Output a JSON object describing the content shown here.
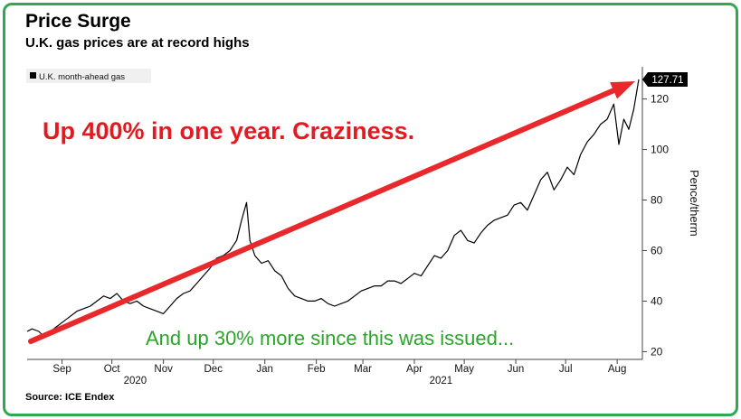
{
  "header": {
    "title": "Price Surge",
    "subtitle": "U.K. gas prices are at record highs"
  },
  "footer": {
    "source": "Source: ICE Endex"
  },
  "annotations": {
    "red_note": "Up 400% in one year. Craziness.",
    "green_note": "And up 30% more since this was issued..."
  },
  "colors": {
    "line": "#000000",
    "arrow": "#e8282b",
    "green_text": "#2aa52a",
    "frame": "#2fa84f",
    "red_text": "#e11b22"
  },
  "chart_data": {
    "type": "line",
    "title": "Price Surge",
    "subtitle": "U.K. gas prices are at record highs",
    "ylabel": "Pence/therm",
    "xlabel": "",
    "ylim": [
      18,
      132
    ],
    "yticks": [
      20,
      40,
      60,
      80,
      100,
      120
    ],
    "xlim": [
      "2020-08-25",
      "2021-08-28"
    ],
    "x_ticks": [
      {
        "label": "Sep",
        "date": "2020-09-15"
      },
      {
        "label": "Oct",
        "date": "2020-10-15"
      },
      {
        "label": "Nov",
        "date": "2020-11-15"
      },
      {
        "label": "Dec",
        "date": "2020-12-15"
      },
      {
        "label": "Jan",
        "date": "2021-01-15"
      },
      {
        "label": "Feb",
        "date": "2021-02-15"
      },
      {
        "label": "Mar",
        "date": "2021-03-15"
      },
      {
        "label": "Apr",
        "date": "2021-04-15"
      },
      {
        "label": "May",
        "date": "2021-05-15"
      },
      {
        "label": "Jun",
        "date": "2021-06-15"
      },
      {
        "label": "Jul",
        "date": "2021-07-15"
      },
      {
        "label": "Aug",
        "date": "2021-08-15"
      }
    ],
    "year_labels": [
      {
        "label": "2020",
        "date": "2020-10-29"
      },
      {
        "label": "2021",
        "date": "2021-05-01"
      }
    ],
    "legend": {
      "entries": [
        "U.K. month-ahead gas"
      ],
      "position": "top-left"
    },
    "last_value_label": "127.71",
    "grid": false,
    "series": [
      {
        "name": "U.K. month-ahead gas",
        "x": [
          "2020-08-25",
          "2020-08-28",
          "2020-09-01",
          "2020-09-04",
          "2020-09-08",
          "2020-09-12",
          "2020-09-16",
          "2020-09-20",
          "2020-09-24",
          "2020-09-28",
          "2020-10-02",
          "2020-10-06",
          "2020-10-10",
          "2020-10-14",
          "2020-10-18",
          "2020-10-22",
          "2020-10-26",
          "2020-10-30",
          "2020-11-03",
          "2020-11-07",
          "2020-11-11",
          "2020-11-15",
          "2020-11-19",
          "2020-11-23",
          "2020-11-27",
          "2020-12-01",
          "2020-12-05",
          "2020-12-09",
          "2020-12-13",
          "2020-12-17",
          "2020-12-21",
          "2020-12-25",
          "2020-12-29",
          "2021-01-01",
          "2021-01-04",
          "2021-01-06",
          "2021-01-09",
          "2021-01-13",
          "2021-01-17",
          "2021-01-21",
          "2021-01-25",
          "2021-01-29",
          "2021-02-02",
          "2021-02-06",
          "2021-02-10",
          "2021-02-14",
          "2021-02-18",
          "2021-02-22",
          "2021-02-26",
          "2021-03-02",
          "2021-03-06",
          "2021-03-10",
          "2021-03-14",
          "2021-03-18",
          "2021-03-22",
          "2021-03-26",
          "2021-03-30",
          "2021-04-03",
          "2021-04-07",
          "2021-04-11",
          "2021-04-15",
          "2021-04-19",
          "2021-04-23",
          "2021-04-27",
          "2021-05-01",
          "2021-05-05",
          "2021-05-09",
          "2021-05-13",
          "2021-05-17",
          "2021-05-21",
          "2021-05-25",
          "2021-05-29",
          "2021-06-02",
          "2021-06-06",
          "2021-06-10",
          "2021-06-14",
          "2021-06-18",
          "2021-06-22",
          "2021-06-26",
          "2021-06-30",
          "2021-07-04",
          "2021-07-08",
          "2021-07-12",
          "2021-07-16",
          "2021-07-20",
          "2021-07-24",
          "2021-07-28",
          "2021-08-01",
          "2021-08-05",
          "2021-08-09",
          "2021-08-13",
          "2021-08-16",
          "2021-08-19",
          "2021-08-22",
          "2021-08-25",
          "2021-08-28"
        ],
        "y": [
          28,
          29,
          28,
          26,
          28,
          30,
          32,
          34,
          36,
          37,
          38,
          40,
          42,
          41,
          43,
          40,
          39,
          40,
          38,
          37,
          36,
          35,
          38,
          41,
          43,
          44,
          47,
          50,
          53,
          57,
          58,
          60,
          64,
          72,
          79,
          64,
          58,
          55,
          56,
          52,
          50,
          45,
          42,
          41,
          40,
          40,
          41,
          39,
          38,
          39,
          40,
          42,
          44,
          45,
          46,
          46,
          48,
          48,
          47,
          49,
          51,
          50,
          54,
          58,
          57,
          60,
          66,
          68,
          64,
          63,
          67,
          70,
          72,
          73,
          74,
          78,
          79,
          76,
          82,
          88,
          91,
          84,
          88,
          93,
          90,
          98,
          103,
          106,
          110,
          112,
          118,
          102,
          112,
          108,
          116,
          127.71
        ]
      }
    ]
  }
}
